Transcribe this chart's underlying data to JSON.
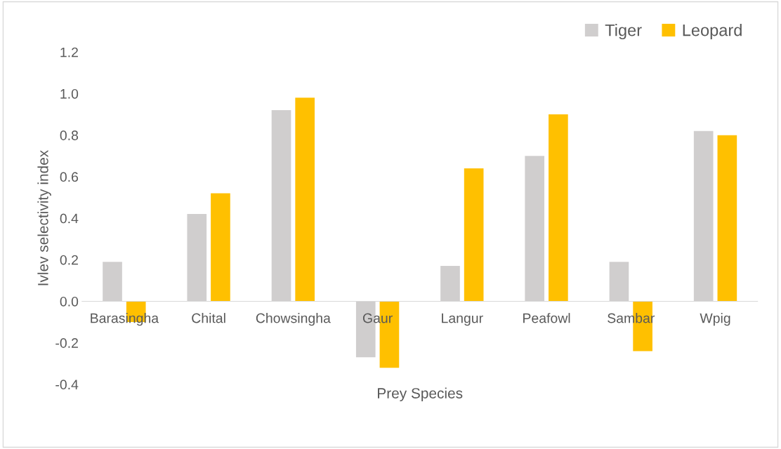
{
  "chart_data": {
    "type": "bar",
    "xlabel": "Prey Species",
    "ylabel": "Ivlev selectivity index",
    "categories": [
      "Barasingha",
      "Chital",
      "Chowsingha",
      "Gaur",
      "Langur",
      "Peafowl",
      "Sambar",
      "Wpig"
    ],
    "series": [
      {
        "name": "Tiger",
        "color": "#d0cece",
        "values": [
          0.19,
          0.42,
          0.92,
          -0.27,
          0.17,
          0.7,
          0.19,
          0.82
        ]
      },
      {
        "name": "Leopard",
        "color": "#ffc000",
        "values": [
          -0.1,
          0.52,
          0.98,
          -0.32,
          0.64,
          0.9,
          -0.24,
          0.8
        ]
      }
    ],
    "ylim": [
      -0.4,
      1.2
    ],
    "yticks": [
      -0.4,
      -0.2,
      {
        "value": 0,
        "label": "0.0"
      },
      0.2,
      0.4,
      0.6,
      0.8,
      {
        "value": 1,
        "label": "1.0"
      },
      1.2
    ],
    "grid": false,
    "legend": "top right"
  }
}
